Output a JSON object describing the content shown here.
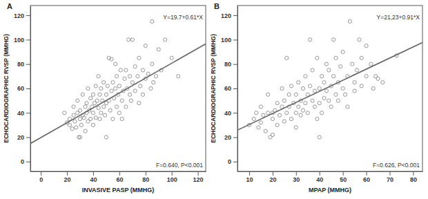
{
  "chart_data": [
    {
      "type": "scatter",
      "title": "A",
      "x_label": "INVASIVE PASP (MMHG)",
      "y_label": "ECHOCARDIOGRAPHIC RVSP (MMHG)",
      "annotations": [
        "Y=19.7+0.61*X",
        "F=0.640, P<0.001"
      ],
      "fit": {
        "intercept": 19.7,
        "slope": 0.61
      },
      "color": "#8a8a8a",
      "marker": "circle",
      "xlim": [
        -8,
        126
      ],
      "ylim": [
        -8,
        128
      ],
      "xticks": [
        0,
        20,
        40,
        60,
        80,
        100,
        120
      ],
      "yticks": [
        0,
        20,
        40,
        60,
        80,
        100,
        120
      ],
      "x": [
        18,
        20,
        22,
        22,
        24,
        25,
        25,
        26,
        27,
        28,
        28,
        29,
        30,
        30,
        30,
        31,
        32,
        32,
        33,
        34,
        34,
        35,
        35,
        36,
        36,
        37,
        38,
        38,
        39,
        40,
        40,
        40,
        41,
        42,
        42,
        43,
        44,
        44,
        45,
        45,
        46,
        46,
        47,
        48,
        48,
        49,
        50,
        50,
        50,
        51,
        52,
        52,
        53,
        54,
        54,
        55,
        55,
        56,
        57,
        57,
        58,
        58,
        59,
        60,
        60,
        61,
        62,
        62,
        63,
        64,
        65,
        65,
        66,
        67,
        68,
        68,
        69,
        70,
        70,
        72,
        72,
        74,
        75,
        75,
        76,
        78,
        78,
        80,
        80,
        82,
        84,
        85,
        85,
        86,
        88,
        90,
        92,
        95,
        100,
        105
      ],
      "y": [
        40,
        32,
        30,
        35,
        27,
        38,
        45,
        33,
        28,
        40,
        50,
        20,
        20,
        35,
        42,
        30,
        38,
        55,
        36,
        25,
        45,
        40,
        48,
        33,
        60,
        42,
        35,
        52,
        45,
        30,
        40,
        55,
        48,
        62,
        36,
        50,
        44,
        70,
        35,
        55,
        40,
        60,
        50,
        45,
        65,
        38,
        55,
        48,
        20,
        62,
        50,
        85,
        42,
        58,
        84,
        35,
        65,
        52,
        60,
        80,
        45,
        70,
        55,
        62,
        40,
        75,
        50,
        35,
        58,
        68,
        45,
        75,
        60,
        100,
        55,
        70,
        50,
        100,
        65,
        58,
        78,
        70,
        48,
        85,
        62,
        75,
        55,
        95,
        68,
        72,
        60,
        115,
        80,
        65,
        70,
        92,
        75,
        100,
        85,
        70
      ]
    },
    {
      "type": "scatter",
      "title": "B",
      "x_label": "MPAP (MMHG)",
      "y_label": "ECHOCARDIOGRAPHIC RVSP (MMHG)",
      "annotations": [
        "Y=21,23+0.91*X",
        "F=0.626, P<0.001"
      ],
      "fit": {
        "intercept": 21.23,
        "slope": 0.91
      },
      "color": "#8a8a8a",
      "marker": "circle",
      "xlim": [
        5,
        84
      ],
      "ylim": [
        -8,
        128
      ],
      "xticks": [
        10,
        20,
        30,
        40,
        50,
        60,
        70,
        80
      ],
      "yticks": [
        0,
        20,
        40,
        60,
        80,
        100,
        120
      ],
      "x": [
        10,
        12,
        13,
        14,
        15,
        15,
        16,
        17,
        18,
        18,
        19,
        20,
        20,
        20,
        21,
        22,
        22,
        23,
        24,
        24,
        25,
        25,
        26,
        26,
        27,
        27,
        28,
        28,
        29,
        30,
        30,
        30,
        31,
        31,
        32,
        32,
        33,
        33,
        34,
        34,
        35,
        35,
        36,
        36,
        37,
        37,
        38,
        38,
        39,
        39,
        40,
        40,
        41,
        41,
        42,
        42,
        43,
        43,
        44,
        44,
        45,
        45,
        46,
        46,
        47,
        47,
        48,
        48,
        49,
        50,
        50,
        51,
        52,
        52,
        53,
        54,
        55,
        55,
        56,
        57,
        58,
        58,
        60,
        60,
        62,
        63,
        64,
        65,
        67,
        73,
        40
      ],
      "y": [
        30,
        35,
        40,
        28,
        45,
        32,
        38,
        25,
        40,
        55,
        20,
        22,
        35,
        40,
        42,
        30,
        48,
        38,
        45,
        60,
        33,
        50,
        40,
        85,
        45,
        55,
        35,
        62,
        48,
        40,
        55,
        28,
        65,
        45,
        50,
        38,
        60,
        42,
        70,
        48,
        55,
        40,
        62,
        100,
        50,
        75,
        58,
        45,
        85,
        35,
        60,
        48,
        70,
        40,
        65,
        52,
        80,
        58,
        50,
        75,
        62,
        45,
        70,
        100,
        55,
        85,
        65,
        50,
        78,
        60,
        90,
        55,
        70,
        45,
        115,
        80,
        65,
        58,
        75,
        100,
        62,
        85,
        70,
        95,
        80,
        60,
        70,
        68,
        65,
        87,
        20
      ]
    }
  ]
}
